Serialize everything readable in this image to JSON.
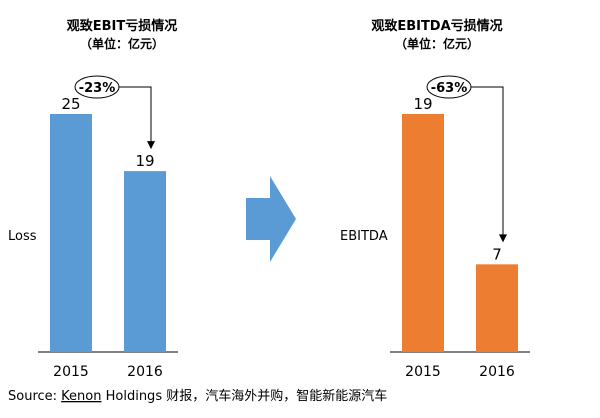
{
  "chart_data": [
    {
      "type": "bar",
      "title": "观致EBIT亏损情况",
      "subtitle": "（单位：亿元）",
      "categories": [
        "2015",
        "2016"
      ],
      "values": [
        25,
        19
      ],
      "value_labels": [
        "25",
        "19"
      ],
      "series_label": "Loss",
      "change_label": "-23%",
      "color": "#5b9bd5",
      "ylim": [
        0,
        25
      ],
      "grid": false
    },
    {
      "type": "bar",
      "title": "观致EBITDA亏损情况",
      "subtitle": "（单位：亿元）",
      "categories": [
        "2015",
        "2016"
      ],
      "values": [
        19,
        7
      ],
      "value_labels": [
        "19",
        "7"
      ],
      "series_label": "EBITDA",
      "change_label": "-63%",
      "color": "#ed7d31",
      "ylim": [
        0,
        19
      ],
      "grid": false
    }
  ],
  "arrow_color": "#5b9bd5",
  "source": {
    "prefix": "Source: ",
    "kenon": "Kenon",
    "rest": " Holdings 财报，汽车海外并购，智能新能源汽车"
  }
}
